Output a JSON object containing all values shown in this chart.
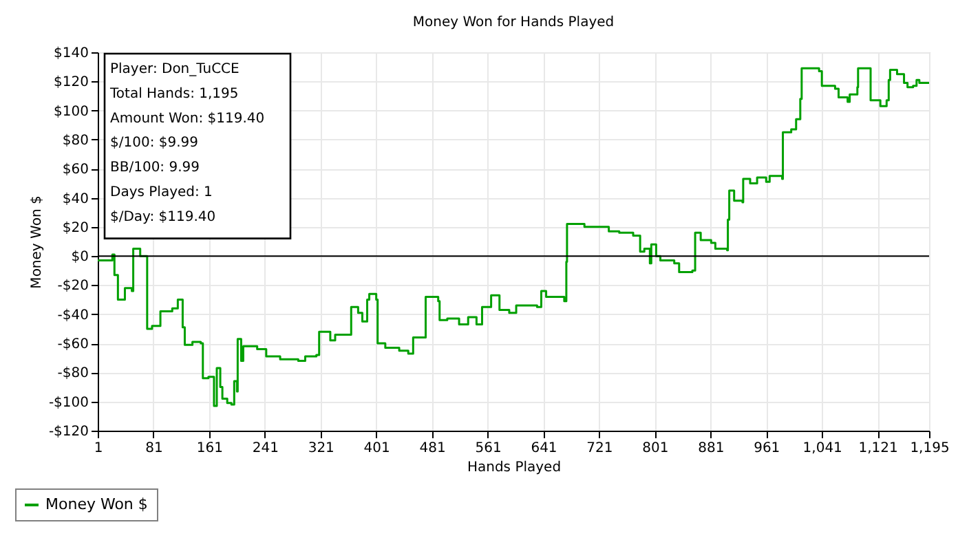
{
  "chart_data": {
    "type": "step",
    "title": "Money Won for Hands Played",
    "xlabel": "Hands Played",
    "ylabel": "Money Won $",
    "x": [
      1,
      22,
      25,
      30,
      40,
      50,
      52,
      62,
      72,
      79,
      91,
      108,
      116,
      123,
      126,
      137,
      149,
      152,
      160,
      168,
      172,
      177,
      180,
      187,
      193,
      197,
      201,
      202,
      207,
      210,
      230,
      243,
      263,
      289,
      299,
      315,
      319,
      335,
      342,
      361,
      365,
      375,
      381,
      388,
      391,
      401,
      403,
      414,
      434,
      447,
      454,
      472,
      490,
      492,
      503,
      520,
      533,
      545,
      553,
      566,
      578,
      592,
      602,
      632,
      638,
      645,
      671,
      674,
      675,
      700,
      735,
      750,
      770,
      780,
      786,
      794,
      796,
      803,
      809,
      829,
      836,
      855,
      859,
      867,
      882,
      888,
      905,
      906,
      908,
      915,
      927,
      928,
      938,
      948,
      961,
      966,
      984,
      985,
      997,
      1004,
      1010,
      1012,
      1037,
      1041,
      1060,
      1065,
      1078,
      1081,
      1092,
      1093,
      1111,
      1125,
      1134,
      1137,
      1139,
      1149,
      1159,
      1164,
      1172,
      1177,
      1181,
      1195
    ],
    "series": [
      {
        "name": "Money Won $",
        "color": "#00a000",
        "values": [
          -3,
          1,
          -13,
          -30,
          -22,
          -24,
          5,
          0,
          -50,
          -48,
          -38,
          -36,
          -30,
          -49,
          -61,
          -59,
          -60,
          -84,
          -83,
          -103,
          -77,
          -90,
          -98,
          -101,
          -102,
          -86,
          -93,
          -57,
          -72,
          -62,
          -64,
          -69,
          -71,
          -72,
          -69,
          -68,
          -52,
          -58,
          -54,
          -54,
          -35,
          -39,
          -45,
          -30,
          -26,
          -30,
          -60,
          -63,
          -65,
          -67,
          -56,
          -28,
          -31,
          -44,
          -43,
          -47,
          -42,
          -47,
          -35,
          -27,
          -37,
          -39,
          -34,
          -35,
          -24,
          -28,
          -31,
          -4,
          22,
          20,
          17,
          16,
          14,
          3,
          5,
          -5,
          8,
          0,
          -3,
          -5,
          -11,
          -10,
          16,
          11,
          9,
          5,
          4,
          25,
          45,
          38,
          37,
          53,
          50,
          54,
          51,
          55,
          53,
          85,
          87,
          94,
          108,
          129,
          127,
          117,
          115,
          109,
          106,
          111,
          116,
          129,
          107,
          103,
          107,
          121,
          128,
          125,
          119,
          116,
          117,
          121,
          119,
          119
        ]
      }
    ],
    "xlim": [
      1,
      1195
    ],
    "xticks": [
      1,
      81,
      161,
      241,
      321,
      401,
      481,
      561,
      641,
      721,
      801,
      881,
      961,
      {
        "value": 1041,
        "label": "1,041"
      },
      {
        "value": 1121,
        "label": "1,121"
      },
      {
        "value": 1195,
        "label": "1,195"
      }
    ],
    "ylim": [
      -120,
      140
    ],
    "yticks": [
      {
        "value": -120,
        "label": "-$120"
      },
      {
        "value": -100,
        "label": "-$100"
      },
      {
        "value": -80,
        "label": "-$80"
      },
      {
        "value": -60,
        "label": "-$60"
      },
      {
        "value": -40,
        "label": "-$40"
      },
      {
        "value": -20,
        "label": "-$20"
      },
      {
        "value": 0,
        "label": "$0"
      },
      {
        "value": 20,
        "label": "$20"
      },
      {
        "value": 40,
        "label": "$40"
      },
      {
        "value": 60,
        "label": "$60"
      },
      {
        "value": 80,
        "label": "$80"
      },
      {
        "value": 100,
        "label": "$100"
      },
      {
        "value": 120,
        "label": "$120"
      },
      {
        "value": 140,
        "label": "$140"
      }
    ],
    "ref_lines": [
      {
        "axis": "y",
        "value": 0,
        "color": "#000000"
      }
    ],
    "annotations": [
      "Player: Don_TuCCE",
      "Total Hands: 1,195",
      "Amount Won: $119.40",
      "$/100: $9.99",
      "BB/100: 9.99",
      "Days Played: 1",
      "$/Day: $119.40"
    ],
    "grid": true,
    "legend": "bottom left",
    "line_style": "solid",
    "marker": "none"
  }
}
